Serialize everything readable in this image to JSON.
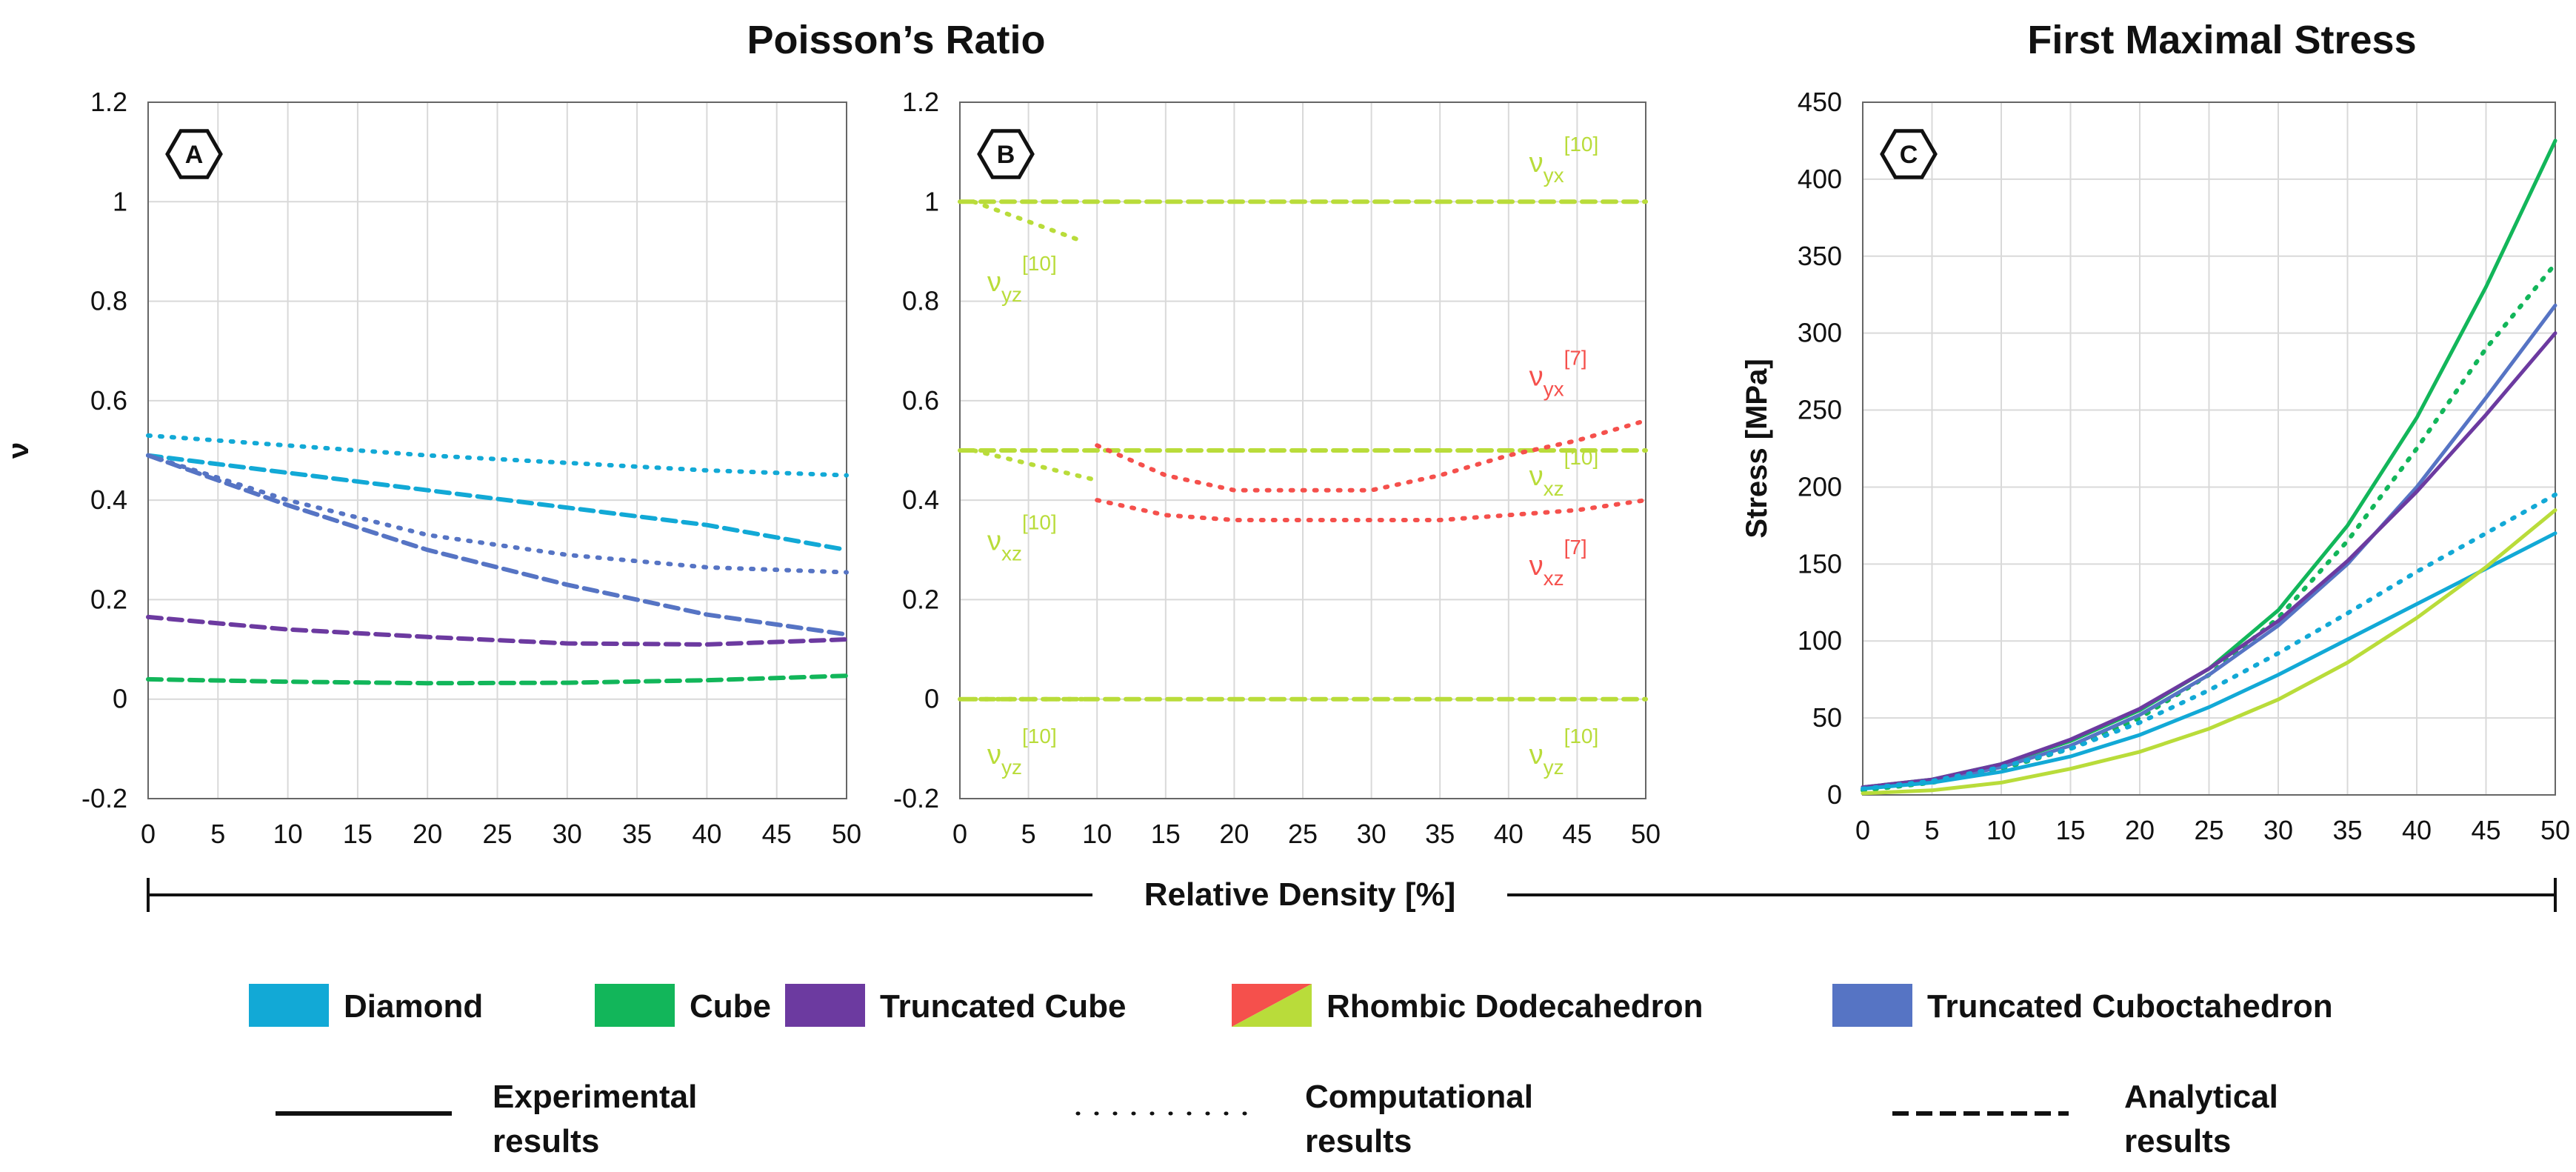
{
  "titles": {
    "poisson": "Poisson’s Ratio",
    "stress": "First Maximal Stress"
  },
  "shared_xlabel": "Relative Density [%]",
  "colors": {
    "diamond": "#12a9d6",
    "cube": "#12b65a",
    "truncated_cube": "#6c3aa0",
    "rd_red": "#f5504c",
    "rd_green": "#b9dc3a",
    "truncated_cuboctahedron": "#5674c4"
  },
  "legend": {
    "materials": [
      {
        "label": "Diamond",
        "color": "#12a9d6"
      },
      {
        "label": "Cube",
        "color": "#12b65a"
      },
      {
        "label": "Truncated Cube",
        "color": "#6c3aa0"
      },
      {
        "label": "Rhombic Dodecahedron",
        "color": "#f5504c",
        "color2": "#b9dc3a"
      },
      {
        "label": "Truncated Cuboctahedron",
        "color": "#5674c4"
      }
    ],
    "styles": [
      {
        "line1": "Experimental",
        "line2": "results",
        "dash": "solid"
      },
      {
        "line1": "Computational",
        "line2": "results",
        "dash": "dotted"
      },
      {
        "line1": "Analytical",
        "line2": "results",
        "dash": "dashed"
      }
    ]
  },
  "chart_data": [
    {
      "panel": "A",
      "type": "line",
      "title": "",
      "xlabel": "",
      "ylabel": "ν",
      "xlim": [
        0,
        50
      ],
      "ylim": [
        -0.2,
        1.2
      ],
      "xticks": [
        "0",
        "5",
        "10",
        "15",
        "20",
        "25",
        "30",
        "35",
        "40",
        "45",
        "50"
      ],
      "yticks": [
        "-0.2",
        "0",
        "0.2",
        "0.4",
        "0.6",
        "0.8",
        "1",
        "1.2"
      ],
      "series": [
        {
          "name": "Diamond computational",
          "color": "#12a9d6",
          "dash": "dotted",
          "x": [
            0,
            10,
            20,
            30,
            40,
            50
          ],
          "y": [
            0.53,
            0.51,
            0.49,
            0.475,
            0.46,
            0.45
          ]
        },
        {
          "name": "Diamond analytical",
          "color": "#12a9d6",
          "dash": "dashed",
          "x": [
            0,
            10,
            20,
            30,
            40,
            50
          ],
          "y": [
            0.49,
            0.455,
            0.42,
            0.385,
            0.35,
            0.3
          ]
        },
        {
          "name": "Truncated Cuboctahedron computational",
          "color": "#5674c4",
          "dash": "dotted",
          "x": [
            0,
            10,
            20,
            30,
            40,
            50
          ],
          "y": [
            0.49,
            0.4,
            0.33,
            0.29,
            0.265,
            0.255
          ]
        },
        {
          "name": "Truncated Cuboctahedron analytical",
          "color": "#5674c4",
          "dash": "dashed",
          "x": [
            0,
            10,
            20,
            30,
            40,
            50
          ],
          "y": [
            0.49,
            0.39,
            0.3,
            0.23,
            0.17,
            0.13
          ]
        },
        {
          "name": "Truncated Cube analytical",
          "color": "#6c3aa0",
          "dash": "dashed",
          "x": [
            0,
            10,
            20,
            30,
            40,
            50
          ],
          "y": [
            0.165,
            0.14,
            0.125,
            0.112,
            0.11,
            0.12
          ]
        },
        {
          "name": "Cube analytical",
          "color": "#12b65a",
          "dash": "dashed",
          "x": [
            0,
            10,
            20,
            30,
            40,
            50
          ],
          "y": [
            0.04,
            0.035,
            0.032,
            0.033,
            0.038,
            0.047
          ]
        }
      ]
    },
    {
      "panel": "B",
      "type": "line",
      "title": "",
      "xlabel": "",
      "ylabel": "",
      "xlim": [
        0,
        50
      ],
      "ylim": [
        -0.2,
        1.2
      ],
      "xticks": [
        "0",
        "5",
        "10",
        "15",
        "20",
        "25",
        "30",
        "35",
        "40",
        "45",
        "50"
      ],
      "yticks": [
        "-0.2",
        "0",
        "0.2",
        "0.4",
        "0.6",
        "0.8",
        "1",
        "1.2"
      ],
      "series": [
        {
          "name": "RD yx analytical",
          "color": "#b9dc3a",
          "dash": "dashed",
          "x": [
            0,
            50
          ],
          "y": [
            1.0,
            1.0
          ]
        },
        {
          "name": "RD xz analytical",
          "color": "#b9dc3a",
          "dash": "dashed",
          "x": [
            0,
            50
          ],
          "y": [
            0.5,
            0.5
          ]
        },
        {
          "name": "RD yz analytical",
          "color": "#b9dc3a",
          "dash": "dashed",
          "x": [
            0,
            50
          ],
          "y": [
            0.0,
            0.0
          ]
        },
        {
          "name": "RD yz computational",
          "color": "#b9dc3a",
          "dash": "dotted",
          "x": [
            1,
            3,
            5,
            7,
            9
          ],
          "y": [
            1.0,
            0.98,
            0.96,
            0.94,
            0.92
          ]
        },
        {
          "name": "RD xz computational",
          "color": "#b9dc3a",
          "dash": "dotted",
          "x": [
            1,
            4,
            7,
            10
          ],
          "y": [
            0.5,
            0.48,
            0.46,
            0.44
          ]
        },
        {
          "name": "RD yz computational 0",
          "color": "#b9dc3a",
          "dash": "dotted",
          "x": [
            1,
            3,
            5,
            7,
            9
          ],
          "y": [
            0.0,
            0.0,
            0.0,
            0.0,
            0.0
          ]
        },
        {
          "name": "RD yx computational [7]",
          "color": "#f5504c",
          "dash": "dotted",
          "x": [
            10,
            15,
            20,
            25,
            30,
            35,
            40,
            45,
            50
          ],
          "y": [
            0.51,
            0.45,
            0.42,
            0.42,
            0.42,
            0.45,
            0.49,
            0.52,
            0.56
          ]
        },
        {
          "name": "RD xz computational [7]",
          "color": "#f5504c",
          "dash": "dotted",
          "x": [
            10,
            15,
            20,
            25,
            30,
            35,
            40,
            45,
            50
          ],
          "y": [
            0.4,
            0.37,
            0.36,
            0.36,
            0.36,
            0.36,
            0.37,
            0.38,
            0.4
          ]
        }
      ],
      "annotations": [
        {
          "text": "ν",
          "sub": "yx",
          "sup": "[10]",
          "color": "#b9dc3a",
          "x": 41.5,
          "y": 1.06
        },
        {
          "text": "ν",
          "sub": "yz",
          "sup": "[10]",
          "color": "#b9dc3a",
          "x": 2,
          "y": 0.82
        },
        {
          "text": "ν",
          "sub": "yx",
          "sup": "[7]",
          "color": "#f5504c",
          "x": 41.5,
          "y": 0.63
        },
        {
          "text": "ν",
          "sub": "xz",
          "sup": "[10]",
          "color": "#b9dc3a",
          "x": 41.5,
          "y": 0.43
        },
        {
          "text": "ν",
          "sub": "xz",
          "sup": "[10]",
          "color": "#b9dc3a",
          "x": 2,
          "y": 0.3
        },
        {
          "text": "ν",
          "sub": "xz",
          "sup": "[7]",
          "color": "#f5504c",
          "x": 41.5,
          "y": 0.25
        },
        {
          "text": "ν",
          "sub": "yz",
          "sup": "[10]",
          "color": "#b9dc3a",
          "x": 2,
          "y": -0.13
        },
        {
          "text": "ν",
          "sub": "yz",
          "sup": "[10]",
          "color": "#b9dc3a",
          "x": 41.5,
          "y": -0.13
        }
      ]
    },
    {
      "panel": "C",
      "type": "line",
      "title": "First Maximal Stress",
      "xlabel": "",
      "ylabel": "Stress [MPa]",
      "xlim": [
        0,
        50
      ],
      "ylim": [
        0,
        450
      ],
      "xticks": [
        "0",
        "5",
        "10",
        "15",
        "20",
        "25",
        "30",
        "35",
        "40",
        "45",
        "50"
      ],
      "yticks": [
        "0",
        "50",
        "100",
        "150",
        "200",
        "250",
        "300",
        "350",
        "400",
        "450"
      ],
      "series": [
        {
          "name": "Cube experimental",
          "color": "#12b65a",
          "dash": "solid",
          "x": [
            0,
            5,
            10,
            15,
            20,
            25,
            30,
            35,
            40,
            45,
            50
          ],
          "y": [
            5,
            10,
            20,
            35,
            55,
            82,
            120,
            175,
            245,
            330,
            425
          ]
        },
        {
          "name": "Cube computational",
          "color": "#12b65a",
          "dash": "dotted",
          "x": [
            0,
            5,
            10,
            15,
            20,
            25,
            30,
            35,
            40,
            45,
            50
          ],
          "y": [
            3,
            8,
            17,
            30,
            50,
            78,
            115,
            165,
            225,
            290,
            345
          ]
        },
        {
          "name": "Truncated Cuboctahedron experimental",
          "color": "#5674c4",
          "dash": "solid",
          "x": [
            0,
            5,
            10,
            15,
            20,
            25,
            30,
            35,
            40,
            45,
            50
          ],
          "y": [
            5,
            9,
            18,
            32,
            52,
            78,
            110,
            150,
            200,
            258,
            318
          ]
        },
        {
          "name": "Truncated Cube experimental",
          "color": "#6c3aa0",
          "dash": "solid",
          "x": [
            0,
            5,
            10,
            15,
            20,
            25,
            30,
            35,
            40,
            45,
            50
          ],
          "y": [
            5,
            10,
            20,
            36,
            56,
            82,
            113,
            152,
            197,
            247,
            300
          ]
        },
        {
          "name": "Diamond experimental",
          "color": "#12a9d6",
          "dash": "solid",
          "x": [
            0,
            5,
            10,
            15,
            20,
            25,
            30,
            35,
            40,
            45,
            50
          ],
          "y": [
            4,
            8,
            15,
            25,
            39,
            57,
            78,
            101,
            124,
            147,
            170
          ]
        },
        {
          "name": "Diamond computational",
          "color": "#12a9d6",
          "dash": "dotted",
          "x": [
            0,
            5,
            10,
            15,
            20,
            25,
            30,
            35,
            40,
            45,
            50
          ],
          "y": [
            4,
            9,
            18,
            30,
            47,
            68,
            92,
            118,
            145,
            170,
            195
          ]
        },
        {
          "name": "Rhombic Dodecahedron experimental",
          "color": "#b9dc3a",
          "dash": "solid",
          "x": [
            0,
            5,
            10,
            15,
            20,
            25,
            30,
            35,
            40,
            45,
            50
          ],
          "y": [
            1,
            3,
            8,
            17,
            28,
            43,
            62,
            86,
            115,
            148,
            185
          ]
        }
      ]
    }
  ]
}
